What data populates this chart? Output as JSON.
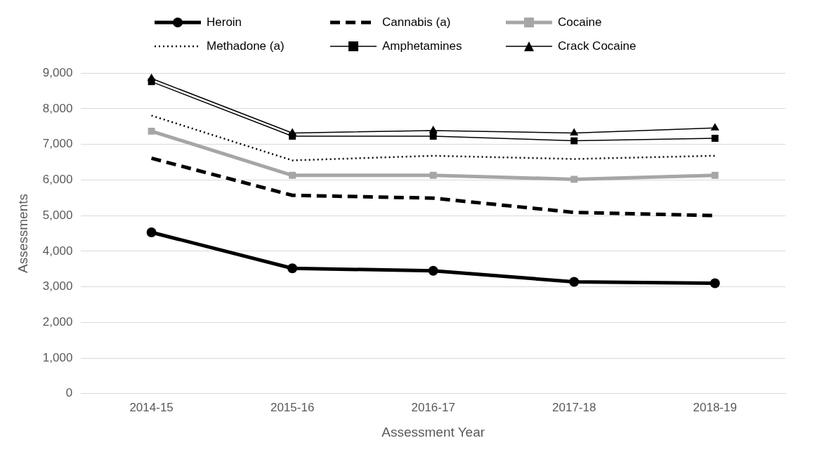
{
  "chart_data": {
    "type": "line",
    "xlabel": "Assessment Year",
    "ylabel": "Assessments",
    "categories": [
      "2014-15",
      "2015-16",
      "2016-17",
      "2017-18",
      "2018-19"
    ],
    "ylim": [
      0,
      9000
    ],
    "yticks": [
      {
        "value": 0,
        "label": "0"
      },
      {
        "value": 1000,
        "label": "1,000"
      },
      {
        "value": 2000,
        "label": "2,000"
      },
      {
        "value": 3000,
        "label": "3,000"
      },
      {
        "value": 4000,
        "label": "4,000"
      },
      {
        "value": 5000,
        "label": "5,000"
      },
      {
        "value": 6000,
        "label": "6,000"
      },
      {
        "value": 7000,
        "label": "7,000"
      },
      {
        "value": 8000,
        "label": "8,000"
      },
      {
        "value": 9000,
        "label": "9,000"
      }
    ],
    "grid": "y",
    "legend": "top",
    "series": [
      {
        "name": "Heroin",
        "color": "#000000",
        "marker": "circle",
        "line_style": "solid",
        "values": [
          4530,
          3520,
          3450,
          3140,
          3100
        ]
      },
      {
        "name": "Cannabis (a)",
        "color": "#000000",
        "marker": "none",
        "line_style": "dashed",
        "values": [
          6610,
          5570,
          5490,
          5090,
          5000
        ]
      },
      {
        "name": "Cocaine",
        "color": "#a6a6a6",
        "marker": "square",
        "line_style": "solid",
        "values": [
          7370,
          6130,
          6130,
          6020,
          6130
        ]
      },
      {
        "name": "Methadone (a)",
        "color": "#000000",
        "marker": "none",
        "line_style": "dotted",
        "values": [
          7810,
          6550,
          6680,
          6590,
          6680
        ]
      },
      {
        "name": "Amphetamines",
        "color": "#000000",
        "marker": "square",
        "line_style": "solid",
        "values": [
          8760,
          7230,
          7230,
          7100,
          7170
        ]
      },
      {
        "name": "Crack Cocaine",
        "color": "#000000",
        "marker": "triangle",
        "line_style": "solid",
        "values": [
          8850,
          7320,
          7390,
          7320,
          7460
        ]
      }
    ]
  }
}
